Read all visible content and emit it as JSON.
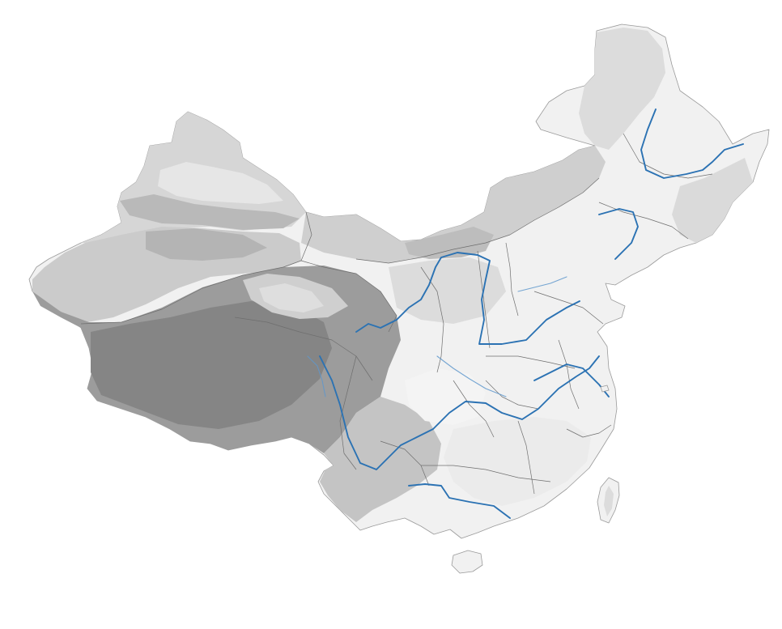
{
  "map": {
    "colors": {
      "high_plateau": "#858585",
      "plateau_mid": "#9c9c9c",
      "basin": "#cbcbcb",
      "basin_dark": "#b4b4b4",
      "mountains_north": "#d6d6d6",
      "uplands": "#cfcfcf",
      "lowlands": "#f1f1f1",
      "lowlands_light": "#f7f7f7",
      "river": "#2b72b3",
      "river_minor": "#5f98cc",
      "border": "#6e6e6e",
      "coast": "#9a9a9a"
    },
    "layers": [
      "relief",
      "provincial-borders",
      "rivers",
      "islands"
    ]
  }
}
